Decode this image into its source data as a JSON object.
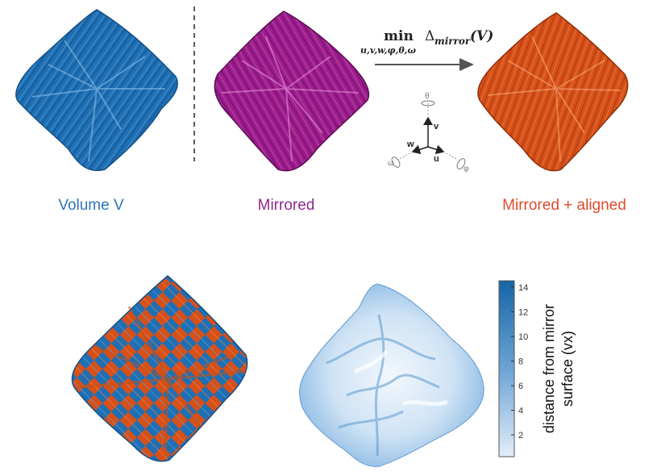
{
  "colors": {
    "volume_blue": "#1f6fb4",
    "mirrored_purple": "#9c1d8c",
    "aligned_orange": "#d6501a",
    "volume_label": "#2e75b6",
    "mirrored_label": "#8e2a8e",
    "aligned_label": "#e04a2c",
    "colorbar_dark": "#1565a7",
    "colorbar_light": "#e3eef8"
  },
  "labels": {
    "volume": "Volume V",
    "mirrored": "Mirrored",
    "aligned": "Mirrored + aligned"
  },
  "formula": {
    "operator": "min",
    "subscript": "u,v,w,φ,θ,ω",
    "delta": "Δ",
    "delta_subscript": "mirror",
    "argument": "(V)"
  },
  "axes": {
    "theta": "θ",
    "v": "v",
    "w": "w",
    "u": "u",
    "omega": "ω",
    "phi": "φ"
  },
  "colorbar": {
    "title_line1": "distance from mirror",
    "title_line2": "surface (vx)",
    "ticks": [
      "14",
      "12",
      "10",
      "8",
      "6",
      "4",
      "2"
    ]
  }
}
